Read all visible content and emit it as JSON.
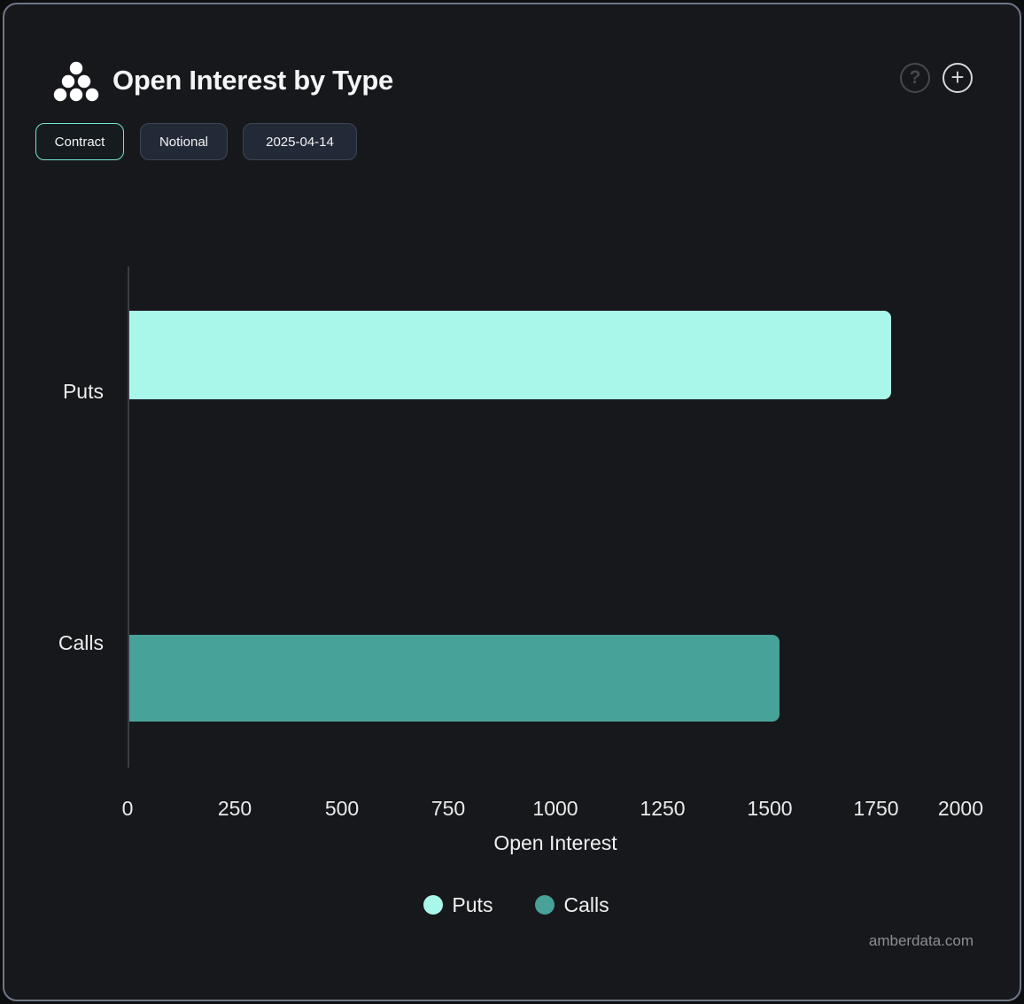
{
  "header": {
    "title": "Open Interest by Type",
    "help_glyph": "?",
    "add_glyph": "+"
  },
  "toolbar": {
    "buttons": [
      {
        "label": "Contract",
        "active": true
      },
      {
        "label": "Notional",
        "active": false
      },
      {
        "label": "2025-04-14",
        "active": false
      }
    ]
  },
  "chart_data": {
    "type": "bar",
    "orientation": "horizontal",
    "title": "Open Interest by Type",
    "categories": [
      "Puts",
      "Calls"
    ],
    "series": [
      {
        "name": "Puts",
        "value": 1780,
        "color": "#a9f7ea"
      },
      {
        "name": "Calls",
        "value": 1520,
        "color": "#47a299"
      }
    ],
    "xlabel": "Open Interest",
    "ylabel": "",
    "xlim": [
      0,
      2000
    ],
    "x_ticks": [
      0,
      250,
      500,
      750,
      1000,
      1250,
      1500,
      1750,
      2000
    ],
    "grid": false,
    "legend_position": "bottom"
  },
  "colors": {
    "card_background": "#17181b",
    "card_border": "#6e7889",
    "active_button_border": "#74e5d4",
    "axis_line": "#3a3e43"
  },
  "footer": {
    "watermark": "amberdata.com"
  }
}
